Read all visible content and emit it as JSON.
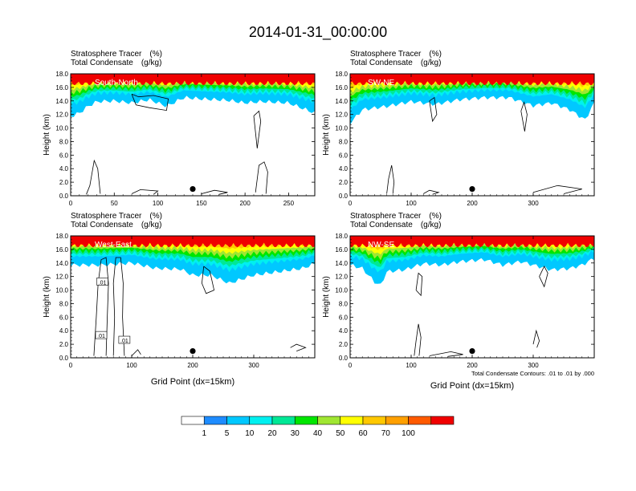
{
  "title": "2014-01-31_00:00:00",
  "chart_data": [
    {
      "type": "heatmap",
      "name": "panel-south-north",
      "cross_section_label": "South-North",
      "title_left_line1": "Stratosphere Tracer",
      "title_right_line1": "(%)",
      "title_left_line2": "Total Condensate",
      "title_right_line2": "(g/kg)",
      "ylabel": "Height (km)",
      "xlabel": "",
      "xlim": [
        0,
        280
      ],
      "ylim": [
        0,
        18
      ],
      "xticks": [
        0,
        50,
        100,
        150,
        200,
        250
      ],
      "yticks": [
        0.0,
        2.0,
        4.0,
        6.0,
        8.0,
        10.0,
        12.0,
        14.0,
        16.0,
        18.0
      ],
      "marker": {
        "x": 140,
        "y": 1.0
      },
      "tracer_base_profile": [
        [
          0,
          12.0
        ],
        [
          10,
          12.5
        ],
        [
          20,
          13.5
        ],
        [
          30,
          14.2
        ],
        [
          50,
          14.3
        ],
        [
          70,
          14.0
        ],
        [
          90,
          14.5
        ],
        [
          110,
          13.5
        ],
        [
          130,
          14.8
        ],
        [
          150,
          14.6
        ],
        [
          180,
          14.4
        ],
        [
          200,
          14.0
        ],
        [
          220,
          14.2
        ],
        [
          250,
          14.0
        ],
        [
          280,
          12.5
        ]
      ],
      "condensate_contours": [
        {
          "points": [
            [
              18,
              0.2
            ],
            [
              22,
              1.5
            ],
            [
              27,
              5.2
            ],
            [
              31,
              4.0
            ],
            [
              34,
              0.3
            ]
          ]
        },
        {
          "points": [
            [
              212,
              0.5
            ],
            [
              216,
              4.5
            ],
            [
              222,
              5.0
            ],
            [
              226,
              3.5
            ],
            [
              224,
              0.3
            ]
          ]
        },
        {
          "points": [
            [
              70,
              15.0
            ],
            [
              78,
              14.6
            ],
            [
              95,
              14.8
            ],
            [
              112,
              14.3
            ],
            [
              110,
              12.6
            ],
            [
              90,
              13.0
            ],
            [
              75,
              13.4
            ],
            [
              70,
              15.0
            ]
          ]
        },
        {
          "points": [
            [
              210,
              11.8
            ],
            [
              216,
              12.5
            ],
            [
              218,
              11.0
            ],
            [
              214,
              7.0
            ],
            [
              210,
              11.8
            ]
          ]
        },
        {
          "points": [
            [
              70,
              0.3
            ],
            [
              80,
              0.9
            ],
            [
              100,
              0.7
            ],
            [
              95,
              0.2
            ]
          ]
        },
        {
          "points": [
            [
              150,
              0.3
            ],
            [
              165,
              0.8
            ],
            [
              180,
              0.5
            ],
            [
              170,
              0.2
            ]
          ]
        }
      ]
    },
    {
      "type": "heatmap",
      "name": "panel-sw-ne",
      "cross_section_label": "SW-NE",
      "title_left_line1": "Stratosphere Tracer",
      "title_right_line1": "(%)",
      "title_left_line2": "Total Condensate",
      "title_right_line2": "(g/kg)",
      "ylabel": "Height (km)",
      "xlabel": "",
      "xlim": [
        0,
        400
      ],
      "ylim": [
        0,
        18
      ],
      "xticks": [
        0,
        100,
        200,
        300
      ],
      "yticks": [
        0.0,
        2.0,
        4.0,
        6.0,
        8.0,
        10.0,
        12.0,
        14.0,
        16.0,
        18.0
      ],
      "marker": {
        "x": 200,
        "y": 1.0
      },
      "tracer_base_profile": [
        [
          0,
          11.0
        ],
        [
          20,
          13.0
        ],
        [
          60,
          13.5
        ],
        [
          100,
          14.2
        ],
        [
          140,
          13.8
        ],
        [
          180,
          14.5
        ],
        [
          220,
          14.8
        ],
        [
          260,
          14.8
        ],
        [
          300,
          13.6
        ],
        [
          330,
          14.0
        ],
        [
          360,
          13.0
        ],
        [
          385,
          11.5
        ],
        [
          400,
          14.0
        ]
      ],
      "condensate_contours": [
        {
          "points": [
            [
              60,
              0.3
            ],
            [
              63,
              2.5
            ],
            [
              68,
              4.5
            ],
            [
              72,
              2.0
            ],
            [
              70,
              0.3
            ]
          ]
        },
        {
          "points": [
            [
              280,
              12.5
            ],
            [
              285,
              13.8
            ],
            [
              290,
              12.0
            ],
            [
              286,
              9.5
            ],
            [
              280,
              12.5
            ]
          ]
        },
        {
          "points": [
            [
              130,
              14.0
            ],
            [
              138,
              14.5
            ],
            [
              142,
              12.0
            ],
            [
              135,
              11.0
            ],
            [
              130,
              14.0
            ]
          ]
        },
        {
          "points": [
            [
              300,
              0.5
            ],
            [
              340,
              1.5
            ],
            [
              380,
              1.0
            ],
            [
              350,
              0.3
            ]
          ]
        },
        {
          "points": [
            [
              120,
              0.3
            ],
            [
              130,
              0.8
            ],
            [
              145,
              0.5
            ],
            [
              135,
              0.2
            ]
          ]
        }
      ]
    },
    {
      "type": "heatmap",
      "name": "panel-west-east",
      "cross_section_label": "West-East",
      "title_left_line1": "Stratosphere Tracer",
      "title_right_line1": "(%)",
      "title_left_line2": "Total Condensate",
      "title_right_line2": "(g/kg)",
      "ylabel": "Height (km)",
      "xlabel": "Grid Point (dx=15km)",
      "xlim": [
        0,
        400
      ],
      "ylim": [
        0,
        18
      ],
      "xticks": [
        0,
        100,
        200,
        300
      ],
      "yticks": [
        0.0,
        2.0,
        4.0,
        6.0,
        8.0,
        10.0,
        12.0,
        14.0,
        16.0,
        18.0
      ],
      "marker": {
        "x": 200,
        "y": 1.0
      },
      "contour_labels": [
        ".01",
        ".01",
        ".01"
      ],
      "tracer_base_profile": [
        [
          0,
          14.0
        ],
        [
          50,
          14.0
        ],
        [
          100,
          14.3
        ],
        [
          140,
          13.5
        ],
        [
          180,
          13.4
        ],
        [
          200,
          12.5
        ],
        [
          230,
          12.5
        ],
        [
          260,
          11.3
        ],
        [
          300,
          12.5
        ],
        [
          340,
          13.0
        ],
        [
          380,
          13.5
        ],
        [
          400,
          14.2
        ]
      ],
      "condensate_contours": [
        {
          "points": [
            [
              38,
              0.3
            ],
            [
              42,
              6.0
            ],
            [
              45,
              11.0
            ],
            [
              50,
              14.5
            ],
            [
              58,
              14.8
            ],
            [
              62,
              11.0
            ],
            [
              60,
              6.0
            ],
            [
              58,
              0.3
            ]
          ]
        },
        {
          "points": [
            [
              70,
              0.3
            ],
            [
              72,
              6.0
            ],
            [
              70,
              11.0
            ],
            [
              74,
              14.8
            ],
            [
              82,
              14.8
            ],
            [
              86,
              11.0
            ],
            [
              85,
              6.0
            ],
            [
              88,
              0.3
            ]
          ]
        },
        {
          "points": [
            [
              218,
              13.5
            ],
            [
              228,
              12.8
            ],
            [
              235,
              10.0
            ],
            [
              222,
              9.5
            ],
            [
              215,
              11.0
            ],
            [
              218,
              13.5
            ]
          ]
        },
        {
          "points": [
            [
              100,
              0.3
            ],
            [
              110,
              1.2
            ],
            [
              115,
              0.5
            ]
          ]
        },
        {
          "points": [
            [
              360,
              1.5
            ],
            [
              370,
              2.0
            ],
            [
              385,
              1.5
            ],
            [
              370,
              1.0
            ]
          ]
        }
      ]
    },
    {
      "type": "heatmap",
      "name": "panel-nw-se",
      "cross_section_label": "NW-SE",
      "title_left_line1": "Stratosphere Tracer",
      "title_right_line1": "(%)",
      "title_left_line2": "Total Condensate",
      "title_right_line2": "(g/kg)",
      "ylabel": "Height (km)",
      "xlabel": "Grid Point (dx=15km)",
      "xlim": [
        0,
        400
      ],
      "ylim": [
        0,
        18
      ],
      "xticks": [
        0,
        100,
        200,
        300
      ],
      "yticks": [
        0.0,
        2.0,
        4.0,
        6.0,
        8.0,
        10.0,
        12.0,
        14.0,
        16.0,
        18.0
      ],
      "marker": {
        "x": 200,
        "y": 1.0
      },
      "footnote": "Total Condensate Contours: .01 to .01 by .000",
      "tracer_base_profile": [
        [
          0,
          14.0
        ],
        [
          20,
          13.5
        ],
        [
          40,
          11.5
        ],
        [
          50,
          11.0
        ],
        [
          60,
          13.0
        ],
        [
          90,
          13.3
        ],
        [
          120,
          14.2
        ],
        [
          150,
          14.0
        ],
        [
          180,
          14.5
        ],
        [
          220,
          14.8
        ],
        [
          250,
          14.0
        ],
        [
          280,
          14.5
        ],
        [
          300,
          14.0
        ],
        [
          330,
          13.3
        ],
        [
          360,
          13.5
        ],
        [
          380,
          14.0
        ],
        [
          400,
          15.0
        ]
      ],
      "condensate_contours": [
        {
          "points": [
            [
              105,
              0.3
            ],
            [
              108,
              2.5
            ],
            [
              112,
              5.0
            ],
            [
              116,
              3.0
            ],
            [
              113,
              0.3
            ]
          ]
        },
        {
          "points": [
            [
              300,
              2.0
            ],
            [
              305,
              4.0
            ],
            [
              310,
              2.5
            ],
            [
              306,
              1.5
            ]
          ]
        },
        {
          "points": [
            [
              108,
              10.0
            ],
            [
              112,
              12.5
            ],
            [
              118,
              12.0
            ],
            [
              116,
              9.2
            ],
            [
              108,
              10.0
            ]
          ]
        },
        {
          "points": [
            [
              310,
              12.0
            ],
            [
              318,
              13.5
            ],
            [
              324,
              12.5
            ],
            [
              318,
              10.5
            ],
            [
              310,
              12.0
            ]
          ]
        },
        {
          "points": [
            [
              130,
              0.3
            ],
            [
              165,
              0.9
            ],
            [
              185,
              0.5
            ],
            [
              160,
              0.2
            ]
          ]
        }
      ]
    }
  ],
  "colorbar": {
    "levels": [
      "1",
      "5",
      "10",
      "20",
      "30",
      "40",
      "50",
      "60",
      "70",
      "100"
    ],
    "colors": [
      "#ffffff",
      "#1e8cff",
      "#00c8ff",
      "#00f0f0",
      "#00e896",
      "#00e600",
      "#a0e632",
      "#ffff00",
      "#ffc800",
      "#ffa000",
      "#ff5a00",
      "#f00000"
    ]
  }
}
